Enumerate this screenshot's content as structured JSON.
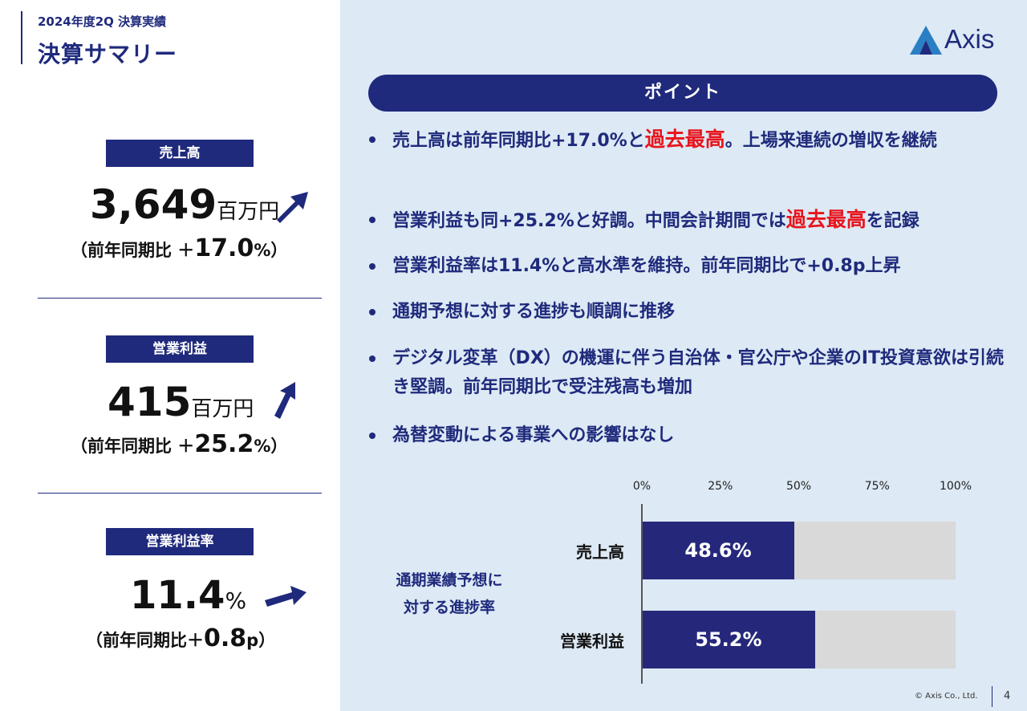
{
  "header": {
    "subtitle": "2024年度2Q 決算実績",
    "title": "決算サマリー"
  },
  "logo": {
    "text": "Axis"
  },
  "metrics": [
    {
      "label": "売上高",
      "value": "3,649",
      "unit": "百万円",
      "compare_prefix": "（前年同期比 ＋",
      "compare_value": "17.0",
      "compare_suffix": "%）"
    },
    {
      "label": "営業利益",
      "value": "415",
      "unit": "百万円",
      "compare_prefix": "（前年同期比 ＋",
      "compare_value": "25.2",
      "compare_suffix": "%）"
    },
    {
      "label": "営業利益率",
      "value": "11.4",
      "unit": "%",
      "compare_prefix": "（前年同期比＋",
      "compare_value": "0.8",
      "compare_suffix": "p）"
    }
  ],
  "points": {
    "header": "ポイント",
    "items": [
      {
        "pre": "売上高は前年同期比+17.0%と",
        "em": "過去最高",
        "post": "。上場来連続の増収を継続"
      },
      {
        "pre": "営業利益も同+25.2%と好調。中間会計期間では",
        "em": "過去最高",
        "post": "を記録"
      },
      {
        "pre": "営業利益率は11.4%と高水準を維持。前年同期比で+0.8p上昇",
        "em": "",
        "post": ""
      },
      {
        "pre": "通期予想に対する進捗も順調に推移",
        "em": "",
        "post": ""
      },
      {
        "pre": "デジタル変革（DX）の機運に伴う自治体・官公庁や企業のIT投資意欲は引続き堅調。前年同期比で受注残高も増加",
        "em": "",
        "post": ""
      },
      {
        "pre": "為替変動による事業への影響はなし",
        "em": "",
        "post": ""
      }
    ]
  },
  "chart_label_line1": "通期業績予想に",
  "chart_label_line2": "対する進捗率",
  "chart_data": {
    "type": "bar",
    "orientation": "horizontal",
    "categories": [
      "売上高",
      "営業利益"
    ],
    "values": [
      48.6,
      55.2
    ],
    "value_labels": [
      "48.6%",
      "55.2%"
    ],
    "xticks": [
      "0%",
      "25%",
      "50%",
      "75%",
      "100%"
    ],
    "xlim": [
      0,
      100
    ],
    "colors": {
      "bar": "#25287a",
      "track": "#d9d9d9"
    }
  },
  "footer": {
    "copyright": "© Axis Co., Ltd.",
    "page": "4"
  },
  "colors": {
    "navy": "#1f2a7c",
    "accent_red": "#e8141c",
    "panel": "#dde9f4"
  }
}
